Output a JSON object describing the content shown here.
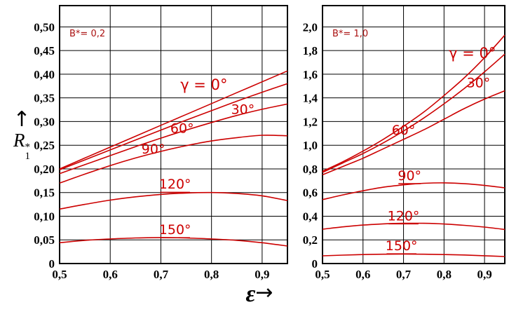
{
  "figure": {
    "y_axis": {
      "arrow": "↑",
      "symbol": "R",
      "sup": "*",
      "sub": "1"
    },
    "x_axis": {
      "symbol": "ε",
      "arrow": "→"
    }
  },
  "chart_data": [
    {
      "type": "line",
      "title": "B*= 0,2",
      "xlabel": "ε",
      "ylabel": "R1*",
      "xlim": [
        0.5,
        0.95
      ],
      "ylim": [
        0,
        0.545
      ],
      "grid": true,
      "line_color": "#cc0000",
      "x_ticks": [
        {
          "value": 0.5,
          "label": "0,5"
        },
        {
          "value": 0.6,
          "label": "0,6"
        },
        {
          "value": 0.7,
          "label": "0,7"
        },
        {
          "value": 0.8,
          "label": "0,8"
        },
        {
          "value": 0.9,
          "label": "0,9"
        }
      ],
      "y_ticks": [
        {
          "value": 0,
          "label": "0"
        },
        {
          "value": 0.05,
          "label": "0,05"
        },
        {
          "value": 0.1,
          "label": "0,10"
        },
        {
          "value": 0.15,
          "label": "0,15"
        },
        {
          "value": 0.2,
          "label": "0,20"
        },
        {
          "value": 0.25,
          "label": "0,25"
        },
        {
          "value": 0.3,
          "label": "0,30"
        },
        {
          "value": 0.35,
          "label": "0,35"
        },
        {
          "value": 0.4,
          "label": "0,40"
        },
        {
          "value": 0.45,
          "label": "0,45"
        },
        {
          "value": 0.5,
          "label": "0,50"
        }
      ],
      "x": [
        0.5,
        0.55,
        0.6,
        0.65,
        0.7,
        0.75,
        0.8,
        0.85,
        0.9,
        0.95
      ],
      "series": [
        {
          "name": "γ = 0°",
          "values": [
            0.2,
            0.223,
            0.246,
            0.269,
            0.292,
            0.315,
            0.338,
            0.361,
            0.384,
            0.407
          ]
        },
        {
          "name": "30°",
          "values": [
            0.198,
            0.219,
            0.24,
            0.261,
            0.282,
            0.303,
            0.323,
            0.343,
            0.362,
            0.38
          ]
        },
        {
          "name": "60°",
          "values": [
            0.19,
            0.209,
            0.228,
            0.247,
            0.265,
            0.282,
            0.298,
            0.313,
            0.326,
            0.337
          ]
        },
        {
          "name": "90°",
          "values": [
            0.17,
            0.189,
            0.207,
            0.223,
            0.237,
            0.249,
            0.259,
            0.266,
            0.271,
            0.27
          ]
        },
        {
          "name": "120°",
          "values": [
            0.115,
            0.125,
            0.134,
            0.141,
            0.146,
            0.149,
            0.15,
            0.148,
            0.143,
            0.133
          ]
        },
        {
          "name": "150°",
          "values": [
            0.044,
            0.049,
            0.052,
            0.054,
            0.055,
            0.054,
            0.052,
            0.049,
            0.044,
            0.037
          ]
        }
      ],
      "curve_labels": [
        {
          "text": "γ = 0°",
          "x": 0.785,
          "y": 0.378,
          "underline": false,
          "size": 21
        },
        {
          "text": "30°",
          "x": 0.862,
          "y": 0.326,
          "underline": false,
          "size": 19
        },
        {
          "text": "60°",
          "x": 0.742,
          "y": 0.286,
          "underline": false,
          "size": 19
        },
        {
          "text": "90°",
          "x": 0.685,
          "y": 0.242,
          "underline": false,
          "size": 19
        },
        {
          "text": "120°",
          "x": 0.728,
          "y": 0.168,
          "underline": true,
          "size": 19
        },
        {
          "text": "150°",
          "x": 0.728,
          "y": 0.072,
          "underline": true,
          "size": 19
        }
      ]
    },
    {
      "type": "line",
      "title": "B*= 1,0",
      "xlabel": "ε",
      "ylabel": "R1*",
      "xlim": [
        0.5,
        0.95
      ],
      "ylim": [
        0,
        2.18
      ],
      "grid": true,
      "line_color": "#cc0000",
      "x_ticks": [
        {
          "value": 0.5,
          "label": "0,5"
        },
        {
          "value": 0.6,
          "label": "0,6"
        },
        {
          "value": 0.7,
          "label": "0,7"
        },
        {
          "value": 0.8,
          "label": "0,8"
        },
        {
          "value": 0.9,
          "label": "0,9"
        }
      ],
      "y_ticks": [
        {
          "value": 0,
          "label": "0"
        },
        {
          "value": 0.2,
          "label": "0,2"
        },
        {
          "value": 0.4,
          "label": "0,4"
        },
        {
          "value": 0.6,
          "label": "0,6"
        },
        {
          "value": 0.8,
          "label": "0,8"
        },
        {
          "value": 1.0,
          "label": "1,0"
        },
        {
          "value": 1.2,
          "label": "1,2"
        },
        {
          "value": 1.4,
          "label": "1,4"
        },
        {
          "value": 1.6,
          "label": "1,6"
        },
        {
          "value": 1.8,
          "label": "1,8"
        },
        {
          "value": 2.0,
          "label": "2,0"
        }
      ],
      "x": [
        0.5,
        0.55,
        0.6,
        0.65,
        0.7,
        0.75,
        0.8,
        0.85,
        0.9,
        0.95
      ],
      "series": [
        {
          "name": "γ = 0°",
          "values": [
            0.78,
            0.86,
            0.95,
            1.05,
            1.16,
            1.28,
            1.42,
            1.57,
            1.74,
            1.93
          ]
        },
        {
          "name": "30°",
          "values": [
            0.77,
            0.85,
            0.93,
            1.02,
            1.12,
            1.23,
            1.35,
            1.48,
            1.62,
            1.77
          ]
        },
        {
          "name": "60°",
          "values": [
            0.75,
            0.82,
            0.89,
            0.97,
            1.05,
            1.13,
            1.22,
            1.31,
            1.39,
            1.46
          ]
        },
        {
          "name": "90°",
          "values": [
            0.54,
            0.58,
            0.615,
            0.645,
            0.665,
            0.678,
            0.682,
            0.675,
            0.66,
            0.64
          ]
        },
        {
          "name": "120°",
          "values": [
            0.29,
            0.31,
            0.325,
            0.335,
            0.34,
            0.34,
            0.334,
            0.323,
            0.308,
            0.288
          ]
        },
        {
          "name": "150°",
          "values": [
            0.065,
            0.071,
            0.076,
            0.079,
            0.08,
            0.079,
            0.076,
            0.072,
            0.066,
            0.059
          ]
        }
      ],
      "curve_labels": [
        {
          "text": "γ = 0°",
          "x": 0.87,
          "y": 1.78,
          "underline": false,
          "size": 21
        },
        {
          "text": "30°",
          "x": 0.885,
          "y": 1.53,
          "underline": false,
          "size": 19
        },
        {
          "text": "60°",
          "x": 0.7,
          "y": 1.13,
          "underline": false,
          "size": 19
        },
        {
          "text": "90°",
          "x": 0.715,
          "y": 0.745,
          "underline": true,
          "size": 19
        },
        {
          "text": "120°",
          "x": 0.7,
          "y": 0.405,
          "underline": true,
          "size": 19
        },
        {
          "text": "150°",
          "x": 0.695,
          "y": 0.152,
          "underline": true,
          "size": 19
        }
      ]
    }
  ]
}
